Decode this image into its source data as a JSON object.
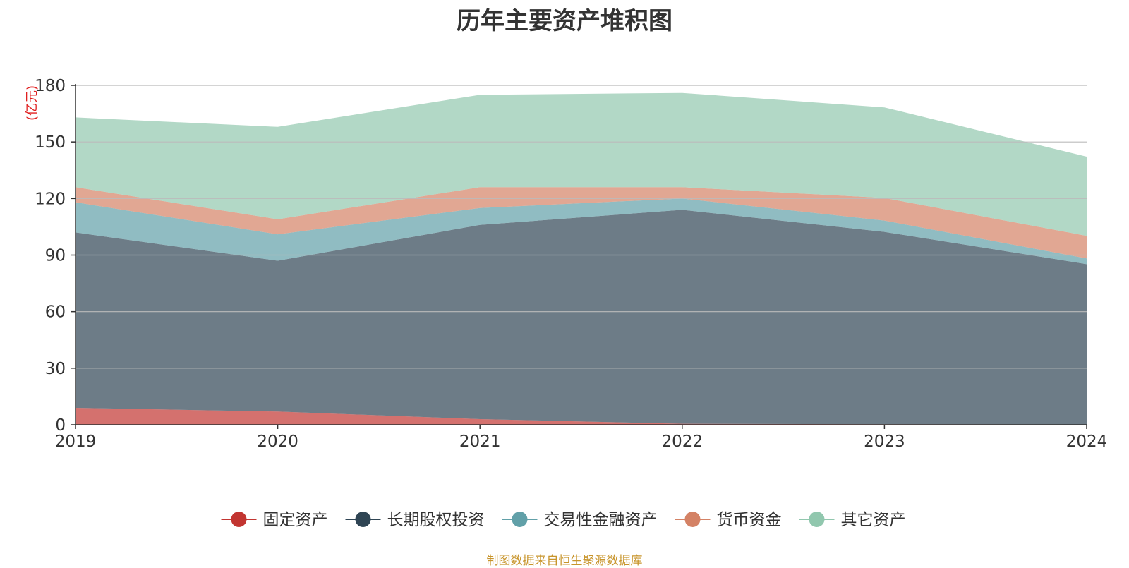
{
  "chart_data": {
    "type": "area",
    "title": "历年主要资产堆积图",
    "unit_label": "(亿元)",
    "x": [
      "2019",
      "2020",
      "2021",
      "2022",
      "2023",
      "2024"
    ],
    "ylim": [
      0,
      180
    ],
    "yticks": [
      0,
      30,
      60,
      90,
      120,
      150,
      180
    ],
    "grid": true,
    "stacked": true,
    "legend_position": "bottom",
    "series": [
      {
        "name": "固定资产",
        "color": "#c23531",
        "values": [
          9,
          7,
          3,
          0.5,
          0.3,
          0.2
        ]
      },
      {
        "name": "长期股权投资",
        "color": "#2f4554",
        "values": [
          93,
          80,
          103,
          113.5,
          102,
          85
        ]
      },
      {
        "name": "交易性金融资产",
        "color": "#61a0a8",
        "values": [
          16,
          14,
          9,
          6,
          6,
          3
        ]
      },
      {
        "name": "货币资金",
        "color": "#d48265",
        "values": [
          8,
          8,
          11,
          6,
          12,
          12
        ]
      },
      {
        "name": "其它资产",
        "color": "#91c7ae",
        "values": [
          37,
          49,
          49,
          50,
          48,
          42
        ]
      }
    ]
  },
  "footer": "制图数据来自恒生聚源数据库"
}
